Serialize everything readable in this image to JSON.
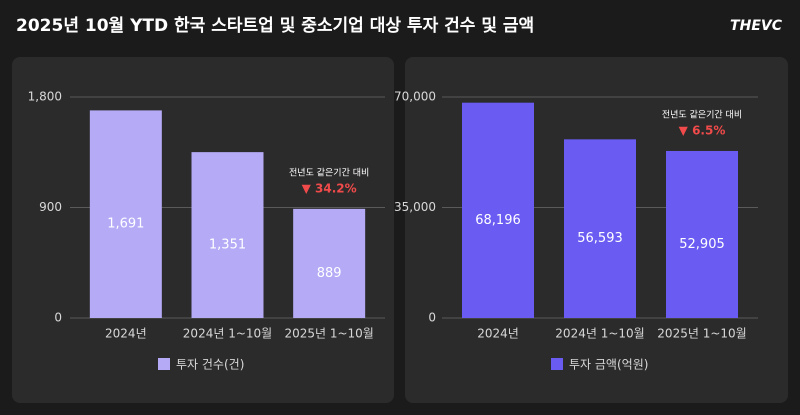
{
  "title": "2025년 10월 YTD 한국 스타트업 및 중소기업 대상 투자 건수 및 금액",
  "logo": "THEVC",
  "chart_data": [
    {
      "type": "bar",
      "categories": [
        "2024년",
        "2024년 1~10월",
        "2025년 1~10월"
      ],
      "series": [
        {
          "name": "투자 건수(건)",
          "color": "#b4aaf6",
          "values": [
            1691,
            1351,
            889
          ],
          "value_labels": [
            "1,691",
            "1,351",
            "889"
          ]
        }
      ],
      "ylim": [
        0,
        1800
      ],
      "yticks": [
        0,
        900,
        {
          "value": 1800,
          "label": "1,800"
        }
      ],
      "grid": true,
      "annotation": {
        "text": "전년도 같은기간 대비",
        "change": "▼ 34.2%",
        "color": "#f04a4a"
      }
    },
    {
      "type": "bar",
      "categories": [
        "2024년",
        "2024년 1~10월",
        "2025년 1~10월"
      ],
      "series": [
        {
          "name": "투자 금액(억원)",
          "color": "#6a5cf2",
          "values": [
            68196,
            56593,
            52905
          ],
          "value_labels": [
            "68,196",
            "56,593",
            "52,905"
          ]
        }
      ],
      "ylim": [
        0,
        70000
      ],
      "yticks": [
        0,
        {
          "value": 35000,
          "label": "35,000"
        },
        {
          "value": 70000,
          "label": "70,000"
        }
      ],
      "grid": true,
      "annotation": {
        "text": "전년도 같은기간 대비",
        "change": "▼ 6.5%",
        "color": "#f04a4a"
      }
    }
  ]
}
